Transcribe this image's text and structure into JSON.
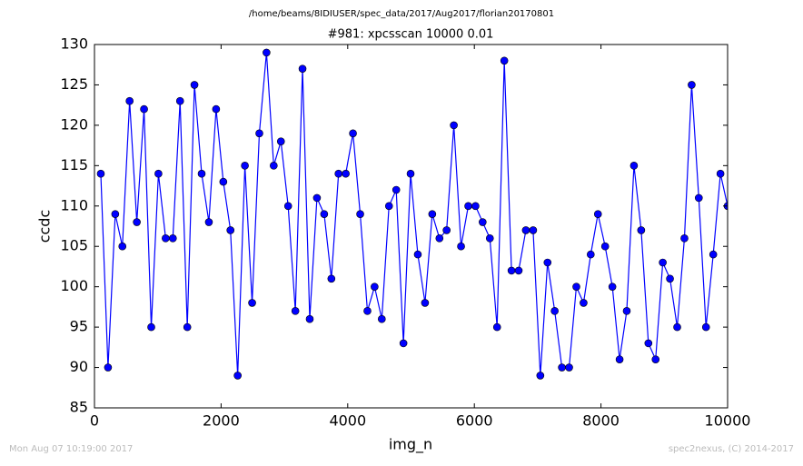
{
  "chart_data": {
    "type": "line",
    "suptitle": "/home/beams/8IDIUSER/spec_data/2017/Aug2017/florian20170801",
    "title": "#981: xpcsscan 10000 0.01",
    "xlabel": "img_n",
    "ylabel": "ccdc",
    "footer_left": "Mon Aug 07 10:19:00 2017",
    "footer_right": "spec2nexus, (C) 2014-2017",
    "xlim": [
      0,
      10000
    ],
    "xticks": [
      0,
      2000,
      4000,
      6000,
      8000,
      10000
    ],
    "ylim": [
      85,
      130
    ],
    "yticks": [
      85,
      90,
      95,
      100,
      105,
      110,
      115,
      120,
      125,
      130
    ],
    "x": [
      100,
      214,
      328,
      441,
      555,
      669,
      783,
      897,
      1010,
      1124,
      1238,
      1352,
      1466,
      1579,
      1693,
      1807,
      1921,
      2035,
      2148,
      2262,
      2376,
      2490,
      2604,
      2717,
      2831,
      2945,
      3059,
      3173,
      3286,
      3400,
      3514,
      3628,
      3742,
      3855,
      3969,
      4083,
      4197,
      4311,
      4424,
      4538,
      4652,
      4766,
      4880,
      4993,
      5107,
      5221,
      5335,
      5449,
      5562,
      5676,
      5790,
      5904,
      6018,
      6131,
      6245,
      6359,
      6473,
      6587,
      6700,
      6814,
      6928,
      7042,
      7156,
      7269,
      7383,
      7497,
      7611,
      7725,
      7838,
      7952,
      8066,
      8180,
      8294,
      8407,
      8521,
      8635,
      8749,
      8863,
      8976,
      9090,
      9204,
      9318,
      9432,
      9545,
      9659,
      9773,
      9887,
      10000
    ],
    "series": [
      {
        "color": "#0000ff",
        "values": [
          114,
          90,
          109,
          105,
          123,
          108,
          122,
          95,
          114,
          106,
          106,
          123,
          95,
          125,
          114,
          108,
          122,
          113,
          107,
          89,
          115,
          98,
          119,
          129,
          115,
          118,
          110,
          97,
          127,
          96,
          111,
          109,
          101,
          114,
          114,
          119,
          109,
          97,
          100,
          96,
          110,
          112,
          93,
          114,
          104,
          98,
          109,
          106,
          107,
          120,
          105,
          110,
          110,
          108,
          106,
          95,
          128,
          102,
          102,
          107,
          107,
          89,
          103,
          97,
          90,
          90,
          100,
          98,
          104,
          109,
          105,
          100,
          91,
          97,
          115,
          107,
          93,
          91,
          103,
          101,
          95,
          106,
          125,
          111,
          95,
          104,
          114,
          110
        ]
      }
    ]
  }
}
